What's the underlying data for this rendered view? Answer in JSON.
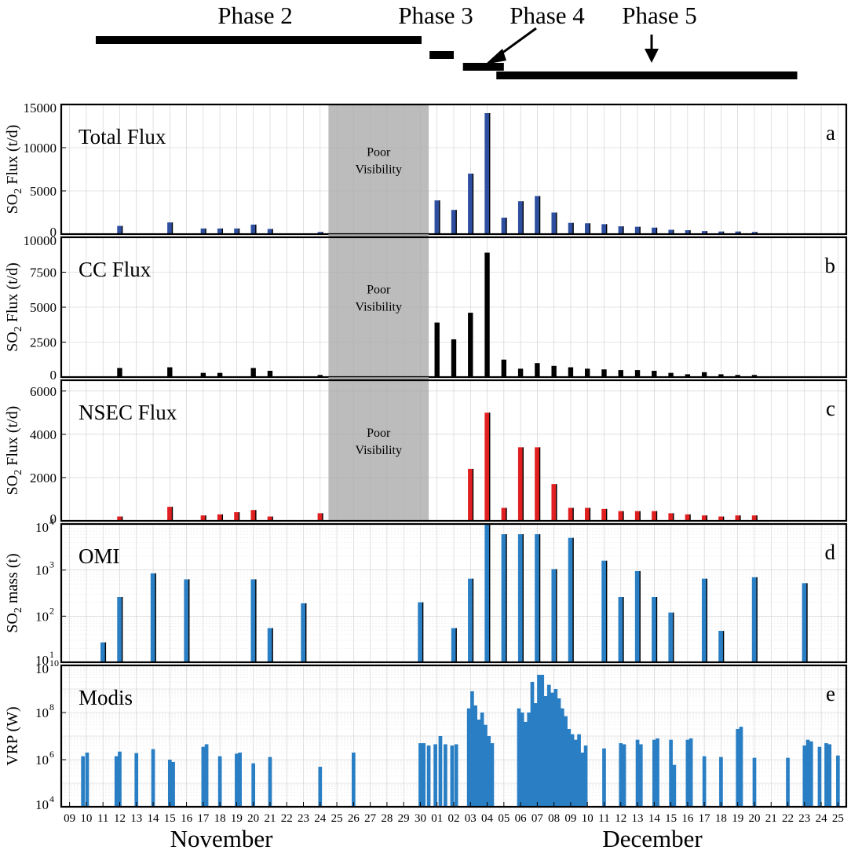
{
  "chart_data": {
    "type": "bar",
    "phases": [
      {
        "label": "Phase 2",
        "start": "2021-11-09",
        "end": "2021-11-30"
      },
      {
        "label": "Phase 3",
        "start": "2021-12-01",
        "end": "2021-12-02"
      },
      {
        "label": "Phase 4",
        "start": "2021-12-03",
        "end": "2021-12-05"
      },
      {
        "label": "Phase 5",
        "start": "2021-12-05",
        "end": "2021-12-22"
      }
    ],
    "poor_visibility": {
      "label_line1": "Poor",
      "label_line2": "Visibility",
      "start_day": 25,
      "end_day": 31
    },
    "x_axis": {
      "day_labels": [
        "09",
        "10",
        "11",
        "12",
        "13",
        "14",
        "15",
        "16",
        "17",
        "18",
        "19",
        "20",
        "21",
        "22",
        "23",
        "24",
        "25",
        "26",
        "27",
        "28",
        "29",
        "30",
        "01",
        "02",
        "03",
        "04",
        "05",
        "06",
        "07",
        "08",
        "09",
        "10",
        "11",
        "12",
        "13",
        "14",
        "15",
        "16",
        "17",
        "18",
        "19",
        "20",
        "21",
        "22",
        "23",
        "24",
        "25"
      ],
      "month_labels": [
        "November",
        "December"
      ],
      "day_index_note": "day index: 9 = Nov 09 ... 30 = Nov 30, 31 = Dec 01 ... 55 = Dec 25"
    },
    "panels": [
      {
        "id": "a",
        "title": "Total Flux",
        "ylabel_pre": "SO",
        "ylabel_sub": "2",
        "ylabel_post": " Flux (t/d)",
        "scale": "linear",
        "ylim": [
          0,
          15000
        ],
        "yticks": [
          0,
          5000,
          10000,
          15000
        ],
        "ytick_labels": [
          "0",
          "5000",
          "10000",
          "15000"
        ],
        "color": "#2e4fa0",
        "show_poor": true,
        "values": [
          [
            12,
            950
          ],
          [
            15,
            1350
          ],
          [
            17,
            650
          ],
          [
            18,
            650
          ],
          [
            19,
            650
          ],
          [
            20,
            1100
          ],
          [
            21,
            600
          ],
          [
            24,
            250
          ],
          [
            31,
            3900
          ],
          [
            32,
            2800
          ],
          [
            33,
            7000
          ],
          [
            34,
            14000
          ],
          [
            35,
            1900
          ],
          [
            36,
            3800
          ],
          [
            37,
            4400
          ],
          [
            38,
            2500
          ],
          [
            39,
            1300
          ],
          [
            40,
            1250
          ],
          [
            41,
            1150
          ],
          [
            42,
            900
          ],
          [
            43,
            850
          ],
          [
            44,
            750
          ],
          [
            45,
            500
          ],
          [
            46,
            450
          ],
          [
            47,
            350
          ],
          [
            48,
            300
          ],
          [
            49,
            300
          ],
          [
            50,
            250
          ]
        ]
      },
      {
        "id": "b",
        "title": "CC Flux",
        "ylabel_pre": "SO",
        "ylabel_sub": "2",
        "ylabel_post": " Flux (t/d)",
        "scale": "linear",
        "ylim": [
          0,
          10000
        ],
        "yticks": [
          0,
          2500,
          5000,
          7500,
          10000
        ],
        "ytick_labels": [
          "0",
          "2500",
          "5000",
          "7500",
          "10000"
        ],
        "color": "#000000",
        "show_poor": true,
        "values": [
          [
            12,
            650
          ],
          [
            15,
            700
          ],
          [
            17,
            300
          ],
          [
            18,
            300
          ],
          [
            20,
            650
          ],
          [
            21,
            450
          ],
          [
            24,
            150
          ],
          [
            31,
            3900
          ],
          [
            32,
            2700
          ],
          [
            33,
            4600
          ],
          [
            34,
            8900
          ],
          [
            35,
            1250
          ],
          [
            36,
            600
          ],
          [
            37,
            1000
          ],
          [
            38,
            800
          ],
          [
            39,
            700
          ],
          [
            40,
            600
          ],
          [
            41,
            550
          ],
          [
            42,
            500
          ],
          [
            43,
            500
          ],
          [
            44,
            450
          ],
          [
            45,
            300
          ],
          [
            46,
            200
          ],
          [
            47,
            350
          ],
          [
            48,
            200
          ],
          [
            49,
            150
          ],
          [
            50,
            150
          ]
        ]
      },
      {
        "id": "c",
        "title": "NSEC Flux",
        "ylabel_pre": "SO",
        "ylabel_sub": "2",
        "ylabel_post": " Flux (t/d)",
        "scale": "linear",
        "ylim": [
          0,
          6500
        ],
        "yticks": [
          0,
          2000,
          4000,
          6000
        ],
        "ytick_labels": [
          "0",
          "2000",
          "4000",
          "6000"
        ],
        "color": "#e02020",
        "show_poor": true,
        "values": [
          [
            12,
            200
          ],
          [
            15,
            650
          ],
          [
            17,
            250
          ],
          [
            18,
            300
          ],
          [
            19,
            400
          ],
          [
            20,
            500
          ],
          [
            21,
            200
          ],
          [
            24,
            350
          ],
          [
            33,
            2400
          ],
          [
            34,
            5000
          ],
          [
            35,
            600
          ],
          [
            36,
            3400
          ],
          [
            37,
            3400
          ],
          [
            38,
            1700
          ],
          [
            39,
            600
          ],
          [
            40,
            600
          ],
          [
            41,
            550
          ],
          [
            42,
            450
          ],
          [
            43,
            450
          ],
          [
            44,
            450
          ],
          [
            45,
            350
          ],
          [
            46,
            300
          ],
          [
            47,
            250
          ],
          [
            48,
            200
          ],
          [
            49,
            250
          ],
          [
            50,
            250
          ]
        ]
      },
      {
        "id": "d",
        "title": "OMI",
        "ylabel_pre": "SO",
        "ylabel_sub": "2",
        "ylabel_post": " mass (t)",
        "scale": "log",
        "ylim": [
          10,
          10000
        ],
        "yticks": [
          10,
          100,
          1000,
          10000
        ],
        "ytick_labels": [
          "10",
          "10",
          "10",
          "10"
        ],
        "ytick_exps": [
          "1",
          "2",
          "3",
          "4"
        ],
        "color": "#2a7fc4",
        "show_poor": false,
        "values": [
          [
            11,
            27
          ],
          [
            12,
            260
          ],
          [
            14,
            850
          ],
          [
            16,
            630
          ],
          [
            20,
            630
          ],
          [
            21,
            55
          ],
          [
            23,
            190
          ],
          [
            30,
            200
          ],
          [
            32,
            55
          ],
          [
            33,
            650
          ],
          [
            34,
            10000
          ],
          [
            35,
            6000
          ],
          [
            36,
            6000
          ],
          [
            37,
            6000
          ],
          [
            38,
            1050
          ],
          [
            39,
            5000
          ],
          [
            41,
            1600
          ],
          [
            42,
            260
          ],
          [
            43,
            950
          ],
          [
            44,
            260
          ],
          [
            45,
            120
          ],
          [
            47,
            650
          ],
          [
            48,
            48
          ],
          [
            50,
            700
          ],
          [
            53,
            520
          ]
        ]
      },
      {
        "id": "e",
        "title": "Modis",
        "ylabel_pre": "VRP (W)",
        "ylabel_sub": "",
        "ylabel_post": "",
        "scale": "log",
        "ylim": [
          10000,
          10000000000
        ],
        "yticks": [
          10000,
          1000000,
          100000000,
          10000000000
        ],
        "ytick_labels": [
          "10",
          "10",
          "10",
          "10"
        ],
        "ytick_exps": [
          "4",
          "6",
          "8",
          "10"
        ],
        "color": "#2a7fc4",
        "show_poor": false,
        "bar_width_days": 0.22,
        "values": [
          [
            9.8,
            1400000
          ],
          [
            10.05,
            2000000
          ],
          [
            11.8,
            1400000
          ],
          [
            12,
            2200000
          ],
          [
            13,
            1900000
          ],
          [
            14,
            2800000
          ],
          [
            15,
            1000000
          ],
          [
            15.2,
            800000
          ],
          [
            17,
            3500000
          ],
          [
            17.2,
            4500000
          ],
          [
            18,
            1400000
          ],
          [
            19,
            1800000
          ],
          [
            19.2,
            2000000
          ],
          [
            20,
            700000
          ],
          [
            21,
            1300000
          ],
          [
            24,
            500000
          ],
          [
            26,
            2000000
          ],
          [
            30,
            5000000
          ],
          [
            30.2,
            5000000
          ],
          [
            30.5,
            4000000
          ],
          [
            30.9,
            4500000
          ],
          [
            31.2,
            10000000
          ],
          [
            31.5,
            4500000
          ],
          [
            31.9,
            4000000
          ],
          [
            32.15,
            4500000
          ],
          [
            32.9,
            150000000
          ],
          [
            33.1,
            800000000
          ],
          [
            33.3,
            200000000
          ],
          [
            33.5,
            50000000
          ],
          [
            33.7,
            100000000
          ],
          [
            33.9,
            30000000
          ],
          [
            34.1,
            10000000
          ],
          [
            34.3,
            5000000
          ],
          [
            35.9,
            150000000
          ],
          [
            36.1,
            100000000
          ],
          [
            36.3,
            40000000
          ],
          [
            36.5,
            100000000
          ],
          [
            36.7,
            2000000000
          ],
          [
            36.9,
            250000000
          ],
          [
            37.1,
            4000000000
          ],
          [
            37.3,
            4000000000
          ],
          [
            37.5,
            500000000
          ],
          [
            37.7,
            1500000000
          ],
          [
            37.9,
            700000000
          ],
          [
            38.1,
            1000000000
          ],
          [
            38.3,
            400000000
          ],
          [
            38.5,
            150000000
          ],
          [
            38.7,
            70000000
          ],
          [
            38.9,
            20000000
          ],
          [
            39.1,
            12000000
          ],
          [
            39.3,
            7000000
          ],
          [
            39.5,
            12000000
          ],
          [
            39.7,
            2000000
          ],
          [
            39.9,
            4000000
          ],
          [
            41,
            3000000
          ],
          [
            42,
            5000000
          ],
          [
            42.2,
            4500000
          ],
          [
            43,
            7000000
          ],
          [
            43.2,
            4500000
          ],
          [
            44,
            7000000
          ],
          [
            44.2,
            8000000
          ],
          [
            45,
            7000000
          ],
          [
            45.2,
            600000
          ],
          [
            46,
            7000000
          ],
          [
            46.2,
            8000000
          ],
          [
            47,
            1400000
          ],
          [
            48,
            1300000
          ],
          [
            49,
            20000000
          ],
          [
            49.2,
            25000000
          ],
          [
            50,
            1200000
          ],
          [
            52,
            1200000
          ],
          [
            53,
            4000000
          ],
          [
            53.2,
            7000000
          ],
          [
            53.4,
            6000000
          ],
          [
            53.9,
            3500000
          ],
          [
            54.3,
            5000000
          ],
          [
            54.5,
            4500000
          ],
          [
            55,
            1500000
          ]
        ]
      }
    ]
  }
}
